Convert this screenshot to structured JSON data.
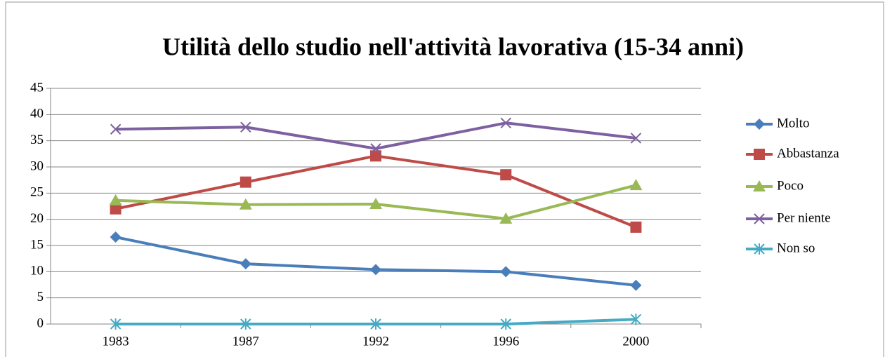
{
  "chart_data": {
    "type": "line",
    "title": "Utilità dello studio nell'attività lavorativa (15-34 anni)",
    "categories": [
      "1983",
      "1987",
      "1992",
      "1996",
      "2000"
    ],
    "series": [
      {
        "name": "Molto",
        "color": "#4a7ebb",
        "marker": "diamond",
        "values": [
          16.6,
          11.5,
          10.4,
          10.0,
          7.4
        ]
      },
      {
        "name": "Abbastanza",
        "color": "#be4b48",
        "marker": "square",
        "values": [
          22.0,
          27.1,
          32.1,
          28.5,
          18.5
        ]
      },
      {
        "name": "Poco",
        "color": "#98b954",
        "marker": "triangle",
        "values": [
          23.6,
          22.8,
          22.9,
          20.1,
          26.5
        ]
      },
      {
        "name": "Per niente",
        "color": "#7d60a0",
        "marker": "x",
        "values": [
          37.2,
          37.6,
          33.5,
          38.4,
          35.5
        ]
      },
      {
        "name": "Non so",
        "color": "#46aac5",
        "marker": "star",
        "values": [
          0,
          0,
          0,
          0,
          0.9
        ]
      }
    ],
    "ylim": [
      0,
      45
    ],
    "yticks": [
      0,
      5,
      10,
      15,
      20,
      25,
      30,
      35,
      40,
      45
    ],
    "grid": true,
    "legend": "right"
  }
}
